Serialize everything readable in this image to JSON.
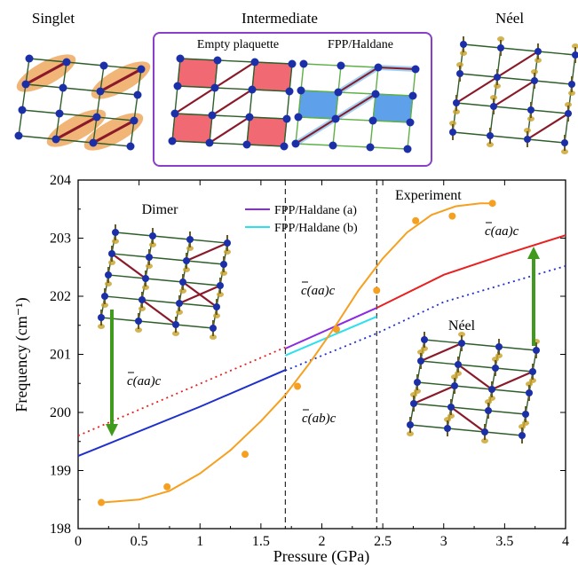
{
  "panel_titles": {
    "singlet": "Singlet",
    "intermediate": "Intermediate",
    "neel": "Néel",
    "empty_plaquette": "Empty plaquette",
    "fpp_haldane": "FPP/Haldane"
  },
  "insets": {
    "dimer": "Dimer",
    "neel": "Néel"
  },
  "annotations": {
    "experiment": "Experiment",
    "c_aa_c_right": "c(aa)c",
    "c_aa_c_mid": "c(aa)c",
    "c_aa_c_left": "c(aa)c",
    "c_ab_c": "c(ab)c"
  },
  "colors": {
    "lattice_line": "#2e5e2a",
    "node": "#1b2fa8",
    "dimer_bond": "#8a1a2a",
    "singlet_fill": "#f0a860",
    "plaquette_red": "#f05a64",
    "plaquette_blue": "#4d96e8",
    "box_border": "#8a3fc8",
    "spin_gold": "#c9a028",
    "arrow_green": "#3f9a1e",
    "fpp_a": "#8a2be2",
    "fpp_b": "#2ee0ee",
    "experiment": "#f5a020",
    "low_solid": "#1f2fcc",
    "high_solid": "#e82020"
  },
  "chart_data": {
    "type": "line",
    "xlabel": "Pressure (GPa)",
    "ylabel": "Frequency (cm⁻¹)",
    "xlim": [
      0,
      4
    ],
    "ylim": [
      198,
      204
    ],
    "xticks": [
      0,
      0.5,
      1,
      1.5,
      2,
      2.5,
      3,
      3.5,
      4
    ],
    "xtick_labels": [
      "0",
      "0.5",
      "1",
      "1.5",
      "2",
      "2.5",
      "3",
      "3.5",
      "4"
    ],
    "yticks": [
      198,
      199,
      200,
      201,
      202,
      203,
      204
    ],
    "ytick_labels": [
      "198",
      "199",
      "200",
      "201",
      "202",
      "203",
      "204"
    ],
    "phase_boundaries": [
      1.7,
      2.45
    ],
    "legend": {
      "placement": "top-center",
      "entries": [
        "FPP/Haldane (a)",
        "FPP/Haldane (b)"
      ]
    },
    "series": [
      {
        "name": "FPP/Haldane (a)",
        "style": "solid",
        "color": "#8a2be2",
        "x": [
          1.7,
          2.45
        ],
        "y": [
          201.1,
          201.8
        ]
      },
      {
        "name": "FPP/Haldane (b)",
        "style": "solid",
        "color": "#2ee0ee",
        "x": [
          1.7,
          2.45
        ],
        "y": [
          200.98,
          201.65
        ]
      },
      {
        "style": "solid",
        "color": "#1f2fcc",
        "x": [
          0,
          1.0,
          1.7
        ],
        "y": [
          199.25,
          200.1,
          200.73
        ]
      },
      {
        "style": "dotted",
        "color": "#e82020",
        "x": [
          0,
          1.7
        ],
        "y": [
          199.6,
          201.12
        ]
      },
      {
        "style": "solid",
        "color": "#e82020",
        "x": [
          2.45,
          3.0,
          3.5,
          4.0
        ],
        "y": [
          201.8,
          202.37,
          202.72,
          203.05
        ]
      },
      {
        "style": "dotted",
        "color": "#1f2fcc",
        "x": [
          1.7,
          2.45,
          3.0,
          4.0
        ],
        "y": [
          200.72,
          201.36,
          201.9,
          202.52
        ]
      },
      {
        "style": "solid",
        "color": "#f5a020",
        "x": [
          0.2,
          0.5,
          0.75,
          1.0,
          1.25,
          1.5,
          1.7,
          1.9,
          2.1,
          2.3,
          2.5,
          2.7,
          2.9,
          3.1,
          3.3,
          3.42
        ],
        "y": [
          198.45,
          198.5,
          198.65,
          198.95,
          199.35,
          199.85,
          200.3,
          200.85,
          201.45,
          202.1,
          202.65,
          203.1,
          203.4,
          203.55,
          203.6,
          203.6
        ]
      }
    ],
    "experiment_points": {
      "x": [
        0.19,
        0.73,
        1.37,
        1.8,
        2.12,
        2.45,
        2.77,
        3.07,
        3.4
      ],
      "y": [
        198.45,
        198.72,
        199.28,
        200.45,
        201.43,
        202.1,
        203.3,
        203.38,
        203.6
      ]
    }
  }
}
